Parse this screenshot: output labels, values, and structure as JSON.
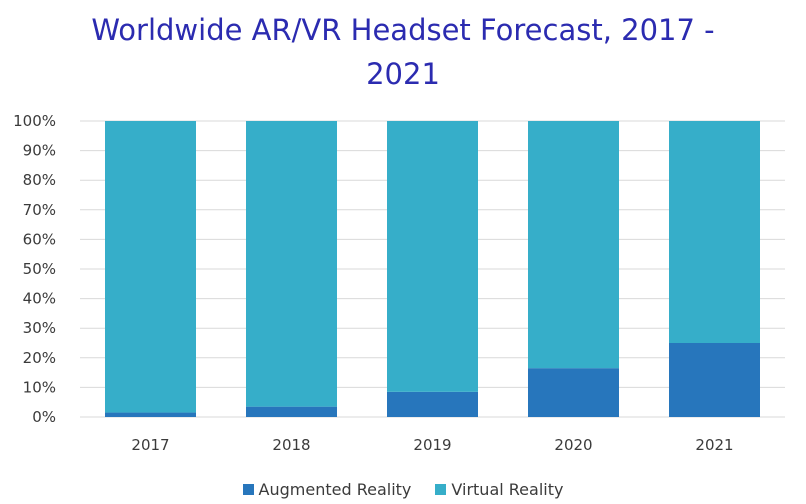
{
  "chart_data": {
    "type": "bar",
    "stacked": true,
    "title_lines": [
      "Worldwide AR/VR Headset Forecast, 2017 -",
      "2021"
    ],
    "categories": [
      "2017",
      "2018",
      "2019",
      "2020",
      "2021"
    ],
    "series": [
      {
        "name": "Augmented Reality",
        "color": "#2776bc",
        "values": [
          1.5,
          3.5,
          8.5,
          16.5,
          25
        ]
      },
      {
        "name": "Virtual Reality",
        "color": "#36aec9",
        "values": [
          98.5,
          96.5,
          91.5,
          83.5,
          75
        ]
      }
    ],
    "y_ticks": [
      "0%",
      "10%",
      "20%",
      "30%",
      "40%",
      "50%",
      "60%",
      "70%",
      "80%",
      "90%",
      "100%"
    ],
    "ylim": [
      0,
      100
    ],
    "grid": true,
    "legend_position": "bottom"
  }
}
